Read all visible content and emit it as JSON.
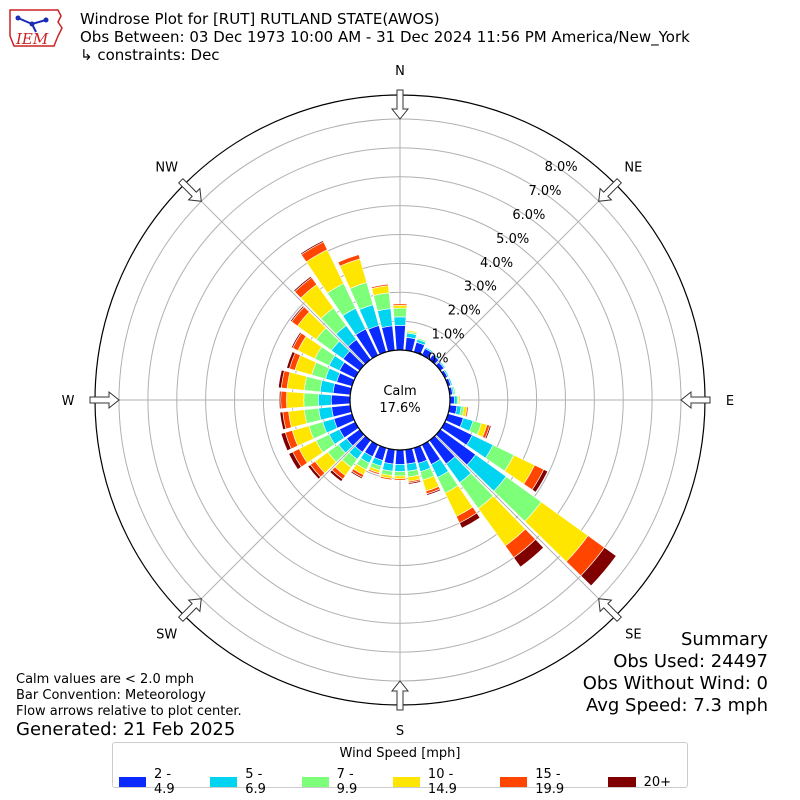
{
  "logo": {
    "text": "IEM",
    "color": "#cc2222",
    "icon": "iowa-state-outline-icon"
  },
  "header": {
    "title": "Windrose Plot for [RUT] RUTLAND STATE(AWOS)",
    "obs_between": "Obs Between: 03 Dec 1973 10:00 AM - 31 Dec 2024 11:56 PM America/New_York",
    "constraints": "↳ constraints: Dec"
  },
  "notes": {
    "calm": "Calm values are < 2.0 mph",
    "bar_convention": "Bar Convention: Meteorology",
    "flow": "Flow arrows relative to plot center.",
    "generated": "Generated: 21 Feb 2025"
  },
  "summary": {
    "title": "Summary",
    "obs_used": "Obs Used: 24497",
    "obs_without_wind": "Obs Without Wind: 0",
    "avg_speed": "Avg Speed: 7.3 mph"
  },
  "chart_data": {
    "type": "windrose",
    "calm_label": "Calm",
    "calm_percent": "17.6%",
    "directions": [
      "N",
      "NE",
      "E",
      "SE",
      "S",
      "SW",
      "W",
      "NW"
    ],
    "radial_ticks": [
      "0.0%",
      "1.0%",
      "2.0%",
      "3.0%",
      "4.0%",
      "5.0%",
      "6.0%",
      "7.0%",
      "8.0%"
    ],
    "r_range": [
      0,
      8
    ],
    "grid": true,
    "bin_angles_deg": [
      0,
      10,
      20,
      30,
      40,
      50,
      60,
      70,
      80,
      90,
      100,
      110,
      120,
      130,
      140,
      150,
      160,
      170,
      180,
      190,
      200,
      210,
      220,
      230,
      240,
      250,
      260,
      270,
      280,
      290,
      300,
      310,
      320,
      330,
      340,
      350
    ],
    "legend": {
      "title": "Wind Speed [mph]",
      "placement": "bottom-center",
      "labels": [
        "2 - 4.9",
        "5 - 6.9",
        "7 - 9.9",
        "10 - 14.9",
        "15 - 19.9",
        "20+"
      ],
      "colors": [
        "#0a2aff",
        "#00d4f0",
        "#7dff7a",
        "#ffe600",
        "#ff4500",
        "#800000"
      ]
    },
    "series": [
      {
        "name": "2 - 4.9",
        "values": [
          0.85,
          0.45,
          0.35,
          0.25,
          0.2,
          0.15,
          0.1,
          0.1,
          0.1,
          0.15,
          0.25,
          0.55,
          1.05,
          1.5,
          1.0,
          0.75,
          0.55,
          0.5,
          0.5,
          0.5,
          0.45,
          0.45,
          0.5,
          0.55,
          0.6,
          0.65,
          0.65,
          0.65,
          0.6,
          0.55,
          0.6,
          0.7,
          0.85,
          1.0,
          0.95,
          0.85
        ]
      },
      {
        "name": "5 - 6.9",
        "values": [
          0.3,
          0.15,
          0.1,
          0.05,
          0.05,
          0.05,
          0.05,
          0.05,
          0.05,
          0.1,
          0.15,
          0.35,
          0.8,
          1.3,
          0.8,
          0.5,
          0.3,
          0.25,
          0.25,
          0.25,
          0.2,
          0.25,
          0.3,
          0.35,
          0.4,
          0.4,
          0.45,
          0.45,
          0.45,
          0.4,
          0.4,
          0.5,
          0.6,
          0.8,
          0.75,
          0.6
        ]
      },
      {
        "name": "7 - 9.9",
        "values": [
          0.3,
          0.05,
          0.05,
          0.0,
          0.0,
          0.0,
          0.0,
          0.0,
          0.05,
          0.05,
          0.1,
          0.3,
          0.8,
          1.5,
          1.1,
          0.6,
          0.3,
          0.2,
          0.15,
          0.15,
          0.15,
          0.25,
          0.35,
          0.45,
          0.5,
          0.5,
          0.5,
          0.5,
          0.55,
          0.5,
          0.55,
          0.65,
          0.75,
          0.95,
          0.8,
          0.55
        ]
      },
      {
        "name": "10 - 14.9",
        "values": [
          0.1,
          0.05,
          0.0,
          0.0,
          0.0,
          0.0,
          0.0,
          0.0,
          0.0,
          0.05,
          0.1,
          0.2,
          0.8,
          2.0,
          1.6,
          0.9,
          0.4,
          0.15,
          0.1,
          0.1,
          0.1,
          0.2,
          0.35,
          0.55,
          0.65,
          0.6,
          0.55,
          0.6,
          0.6,
          0.6,
          0.65,
          0.8,
          1.0,
          1.3,
          0.85,
          0.25
        ]
      },
      {
        "name": "15 - 19.9",
        "values": [
          0.05,
          0.0,
          0.0,
          0.0,
          0.0,
          0.0,
          0.0,
          0.0,
          0.0,
          0.0,
          0.05,
          0.1,
          0.35,
          0.7,
          0.5,
          0.25,
          0.1,
          0.05,
          0.05,
          0.05,
          0.05,
          0.1,
          0.15,
          0.2,
          0.25,
          0.25,
          0.2,
          0.2,
          0.2,
          0.2,
          0.2,
          0.25,
          0.3,
          0.3,
          0.15,
          0.05
        ]
      },
      {
        "name": "20+",
        "values": [
          0.0,
          0.0,
          0.0,
          0.0,
          0.0,
          0.0,
          0.0,
          0.0,
          0.0,
          0.0,
          0.0,
          0.05,
          0.15,
          0.5,
          0.4,
          0.2,
          0.05,
          0.05,
          0.0,
          0.0,
          0.0,
          0.05,
          0.1,
          0.1,
          0.15,
          0.15,
          0.1,
          0.05,
          0.1,
          0.1,
          0.05,
          0.05,
          0.05,
          0.05,
          0.0,
          0.0
        ]
      }
    ]
  }
}
